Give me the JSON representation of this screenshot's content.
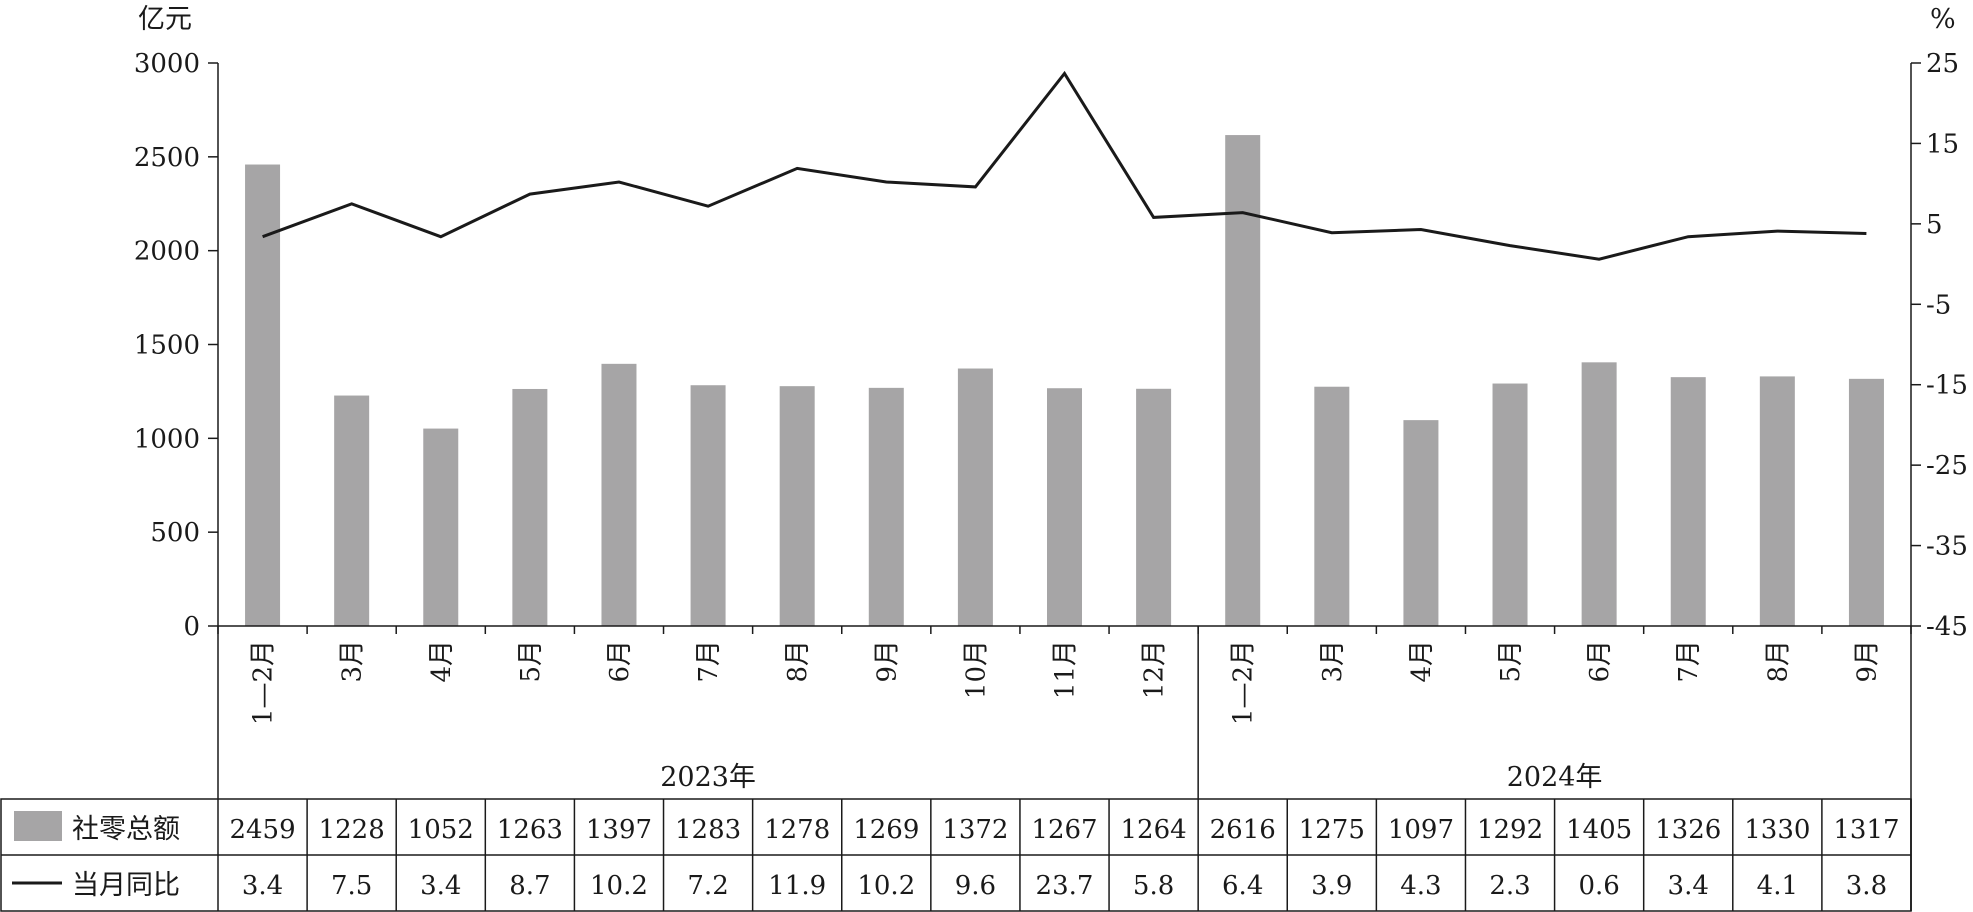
{
  "chart_data": {
    "type": "bar+line",
    "left_axis_unit": "亿元",
    "right_axis_unit": "%",
    "left_ylim": [
      0,
      3000
    ],
    "left_ticks": [
      "0",
      "500",
      "1000",
      "1500",
      "2000",
      "2500",
      "3000"
    ],
    "right_ylim": [
      -45,
      25
    ],
    "right_ticks": [
      "-45",
      "-35",
      "-25",
      "-15",
      "-5",
      "5",
      "15",
      "25"
    ],
    "categories": [
      "1—2月",
      "3月",
      "4月",
      "5月",
      "6月",
      "7月",
      "8月",
      "9月",
      "10月",
      "11月",
      "12月",
      "1—2月",
      "3月",
      "4月",
      "5月",
      "6月",
      "7月",
      "8月",
      "9月"
    ],
    "groups": [
      {
        "label": "2023年",
        "count": 11
      },
      {
        "label": "2024年",
        "count": 8
      }
    ],
    "series": [
      {
        "name": "社零总额",
        "type": "bar",
        "axis": "left",
        "values": [
          2459,
          1228,
          1052,
          1263,
          1397,
          1283,
          1278,
          1269,
          1372,
          1267,
          1264,
          2616,
          1275,
          1097,
          1292,
          1405,
          1326,
          1330,
          1317
        ]
      },
      {
        "name": "当月同比",
        "type": "line",
        "axis": "right",
        "values": [
          3.4,
          7.5,
          3.4,
          8.7,
          10.2,
          7.2,
          11.9,
          10.2,
          9.6,
          23.7,
          5.8,
          6.4,
          3.9,
          4.3,
          2.3,
          0.6,
          3.4,
          4.1,
          3.8
        ]
      }
    ],
    "colors": {
      "bar": "#a6a5a6",
      "line": "#1a1a1a",
      "axis": "#1a1a1a"
    }
  }
}
